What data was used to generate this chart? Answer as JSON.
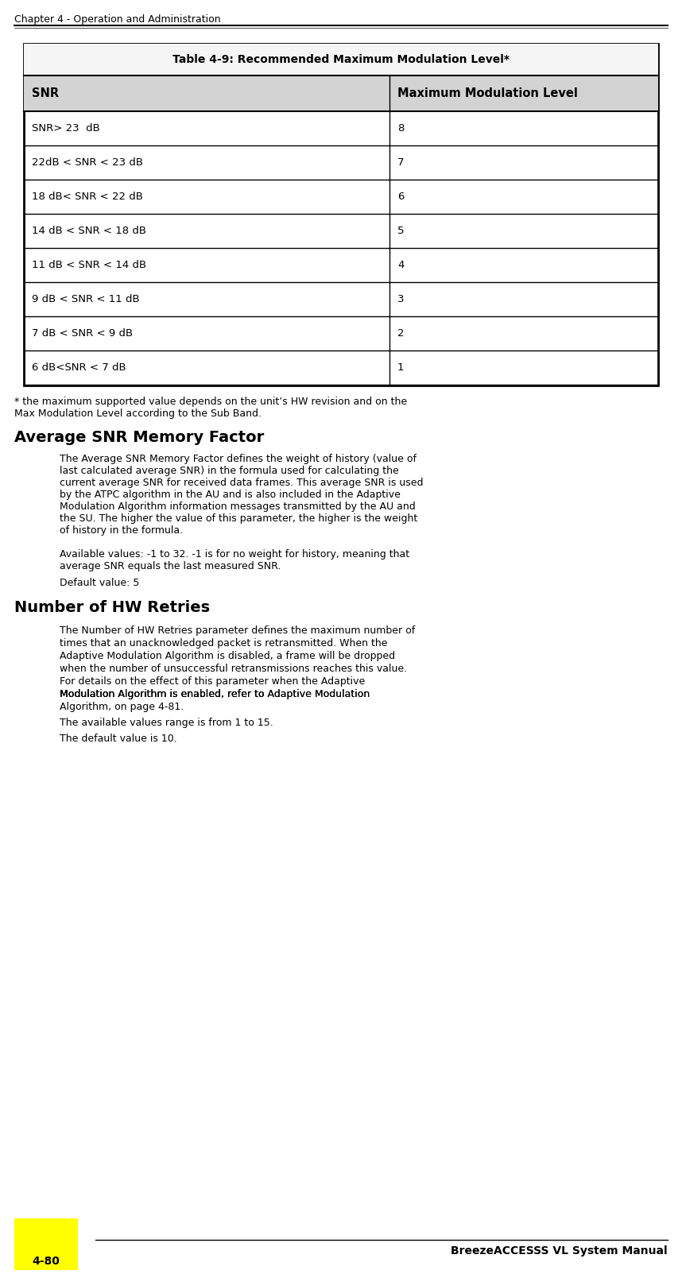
{
  "header_text": "Chapter 4 - Operation and Administration",
  "footer_right": "BreezeACCESSS VL System Manual",
  "footer_left": "4-80",
  "footer_yellow_box": true,
  "table_title": "Table 4-9: Recommended Maximum Modulation Level*",
  "table_col1_header": "SNR",
  "table_col2_header": "Maximum Modulation Level",
  "table_rows": [
    [
      "SNR> 23  dB",
      "8"
    ],
    [
      "22dB < SNR < 23 dB",
      "7"
    ],
    [
      "18 dB< SNR < 22 dB",
      "6"
    ],
    [
      "14 dB < SNR < 18 dB",
      "5"
    ],
    [
      "11 dB < SNR < 14 dB",
      "4"
    ],
    [
      "9 dB < SNR < 11 dB",
      "3"
    ],
    [
      "7 dB < SNR < 9 dB",
      "2"
    ],
    [
      "6 dB<SNR < 7 dB",
      "1"
    ]
  ],
  "footnote": "* the maximum supported value depends on the unit’s HW revision and on the\nMax Modulation Level according to the Sub Band.",
  "section1_title": "Average SNR Memory Factor",
  "section1_body": "The Average SNR Memory Factor defines the weight of history (value of\nlast calculated average SNR) in the formula used for calculating the\ncurrent average SNR for received data frames. This average SNR is used\nby the ATPC algorithm in the AU and is also included in the Adaptive\nModulation Algorithm information messages transmitted by the AU and\nthe SU. The higher the value of this parameter, the higher is the weight\nof history in the formula.",
  "section1_avail": "Available values: -1 to 32. -1 is for no weight for history, meaning that\naverage SNR equals the last measured SNR.",
  "section1_default": "Default value: 5",
  "section2_title": "Number of HW Retries",
  "section2_body": "The Number of HW Retries parameter defines the maximum number of\ntimes that an unacknowledged packet is retransmitted. When the\nAdaptive Modulation Algorithm is disabled, a frame will be dropped\nwhen the number of unsuccessful retransmissions reaches this value.\nFor details on the effect of this parameter when the Adaptive\nModulation Algorithm is enabled, refer to Adaptive Modulation\nAlgorithm, on page 4-81.",
  "section2_avail": "The available values range is from 1 to 15.",
  "section2_default": "The default value is 10.",
  "link_text": "Adaptive Modulation\nAlgorithm",
  "bg_color": "#ffffff",
  "header_line_color": "#000000",
  "table_border_color": "#000000",
  "table_header_bg": "#d3d3d3",
  "table_title_bg": "#f0f0f0",
  "yellow_color": "#ffff00",
  "text_color": "#000000",
  "link_color": "#0000ff"
}
